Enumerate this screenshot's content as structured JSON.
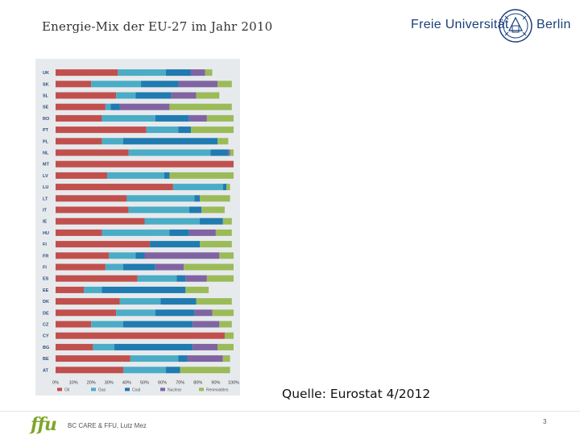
{
  "slide": {
    "title": "Energie-Mix der EU-27 im Jahr 2010",
    "source": "Quelle: Eurostat 4/2012",
    "footer_logo": "ffu",
    "footer_text": "BC CARE & FFU, Lutz Mez",
    "page_number": "3"
  },
  "logo": {
    "left_text": "Freie Universität",
    "right_text": "Berlin"
  },
  "chart_data": {
    "type": "bar",
    "orientation": "horizontal",
    "stacked": true,
    "categories": [
      "UK",
      "SK",
      "SL",
      "SE",
      "RO",
      "PT",
      "PL",
      "NL",
      "MT",
      "LV",
      "LU",
      "LT",
      "IT",
      "IE",
      "HU",
      "FI",
      "FR",
      "FI",
      "ES",
      "EE",
      "DK",
      "DE",
      "CZ",
      "CY",
      "BG",
      "BE",
      "AT"
    ],
    "x_ticks": [
      "0%",
      "10%",
      "20%",
      "30%",
      "40%",
      "50%",
      "60%",
      "70%",
      "80%",
      "90%",
      "100%"
    ],
    "xlim": [
      0,
      100
    ],
    "legend_position": "bottom",
    "series": [
      {
        "name": "Oil",
        "color": "#c0504d",
        "values": [
          35,
          20,
          34,
          28,
          26,
          51,
          26,
          41,
          100,
          29,
          66,
          40,
          41,
          50,
          26,
          53,
          30,
          28,
          46,
          16,
          36,
          34,
          20,
          95,
          21,
          42,
          38
        ]
      },
      {
        "name": "Gas",
        "color": "#4bacc6",
        "values": [
          27,
          28,
          11,
          3,
          30,
          18,
          12,
          46,
          0,
          32,
          28,
          38,
          34,
          31,
          38,
          0,
          15,
          10,
          22,
          10,
          23,
          22,
          18,
          0,
          12,
          27,
          24
        ]
      },
      {
        "name": "Coal",
        "color": "#1f7bb0",
        "values": [
          14,
          21,
          20,
          5,
          19,
          7,
          53,
          10,
          0,
          3,
          2,
          3,
          7,
          13,
          11,
          28,
          5,
          18,
          5,
          47,
          20,
          22,
          39,
          0,
          44,
          5,
          8
        ]
      },
      {
        "name": "Nuclear",
        "color": "#8064a2",
        "values": [
          8,
          22,
          14,
          28,
          10,
          0,
          0,
          1,
          0,
          0,
          0,
          0,
          0,
          0,
          15,
          0,
          42,
          16,
          12,
          0,
          0,
          10,
          15,
          0,
          14,
          20,
          0
        ]
      },
      {
        "name": "Renewables",
        "color": "#9bbb59",
        "values": [
          4,
          8,
          13,
          35,
          15,
          24,
          6,
          2,
          0,
          36,
          2,
          17,
          13,
          5,
          9,
          18,
          8,
          28,
          15,
          13,
          20,
          12,
          7,
          5,
          9,
          4,
          28
        ]
      }
    ]
  }
}
